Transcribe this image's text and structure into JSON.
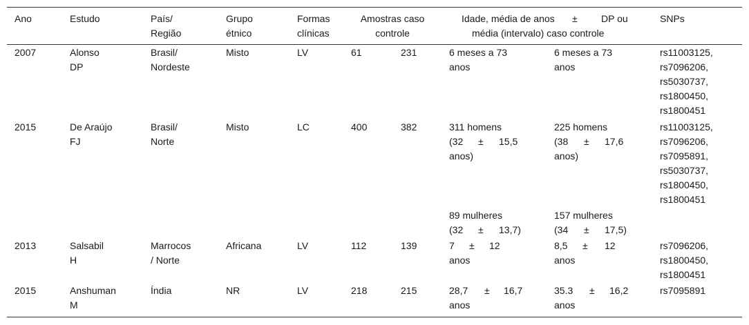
{
  "headers": {
    "ano": "Ano",
    "estudo": "Estudo",
    "pais_1": "País/",
    "pais_2": "Região",
    "grupo_1": "Grupo",
    "grupo_2": "étnico",
    "formas_1": "Formas",
    "formas_2": "clínicas",
    "amostras_1": "Amostras caso",
    "amostras_2": "controle",
    "idade_1a": "Idade, média de anos",
    "idade_pm": "±",
    "idade_1b": "DP ou",
    "idade_2": "média (intervalo) caso controle",
    "snps": "SNPs"
  },
  "rows": [
    {
      "ano": "2007",
      "estudo_1": "Alonso",
      "estudo_2": "DP",
      "pais_1": "Brasil/",
      "pais_2": "Nordeste",
      "grupo": "Misto",
      "forma": "LV",
      "caso": "61",
      "controle": "231",
      "idade_caso_1": "6 meses a 73",
      "idade_caso_2": "anos",
      "idade_ctrl_1": "6 meses a 73",
      "idade_ctrl_2": "anos",
      "snps": [
        "rs11003125,",
        "rs7096206,",
        "rs5030737,",
        "rs1800450,",
        "rs1800451"
      ]
    },
    {
      "ano": "2015",
      "estudo_1": "De Araújo",
      "estudo_2": "FJ",
      "pais_1": "Brasil/",
      "pais_2": "Norte",
      "grupo": "Misto",
      "forma": "LC",
      "caso": "400",
      "controle": "382",
      "caso_homens": {
        "l1": "311 homens",
        "a": "(32",
        "b": "±",
        "c": "15,5",
        "l3": "anos)"
      },
      "ctrl_homens": {
        "l1": "225 homens",
        "a": "(38",
        "b": "±",
        "c": "17,6",
        "l3": "anos)"
      },
      "caso_mulheres": {
        "l1": "89 mulheres",
        "a": "(32",
        "b": "±",
        "c": "13,7)"
      },
      "ctrl_mulheres": {
        "l1": "157 mulheres",
        "a": "(34",
        "b": "±",
        "c": "17,5)"
      },
      "snps": [
        "rs11003125,",
        "rs7096206,",
        "rs7095891,",
        "rs5030737,",
        "rs1800450,",
        "rs1800451"
      ]
    },
    {
      "ano": "2013",
      "estudo_1": "Salsabil",
      "estudo_2": "H",
      "pais_1": "Marrocos",
      "pais_2": "/ Norte",
      "grupo": "Africana",
      "forma": "LV",
      "caso": "112",
      "controle": "139",
      "idade_caso": {
        "a": "7",
        "b": "±",
        "c": "12",
        "l2": "anos"
      },
      "idade_ctrl": {
        "a": "8,5",
        "b": "±",
        "c": "12",
        "l2": "anos"
      },
      "snps": [
        "rs7096206,",
        "rs1800450,",
        "rs1800451"
      ]
    },
    {
      "ano": "2015",
      "estudo_1": "Anshuman",
      "estudo_2": "M",
      "pais_1": "Índia",
      "grupo": "NR",
      "forma": "LV",
      "caso": "218",
      "controle": "215",
      "idade_caso": {
        "a": "28,7",
        "b": "±",
        "c": "16,7",
        "l2": "anos"
      },
      "idade_ctrl": {
        "a": "35.3",
        "b": "±",
        "c": "16,2",
        "l2": "anos"
      },
      "snps": [
        "rs7095891"
      ]
    }
  ]
}
